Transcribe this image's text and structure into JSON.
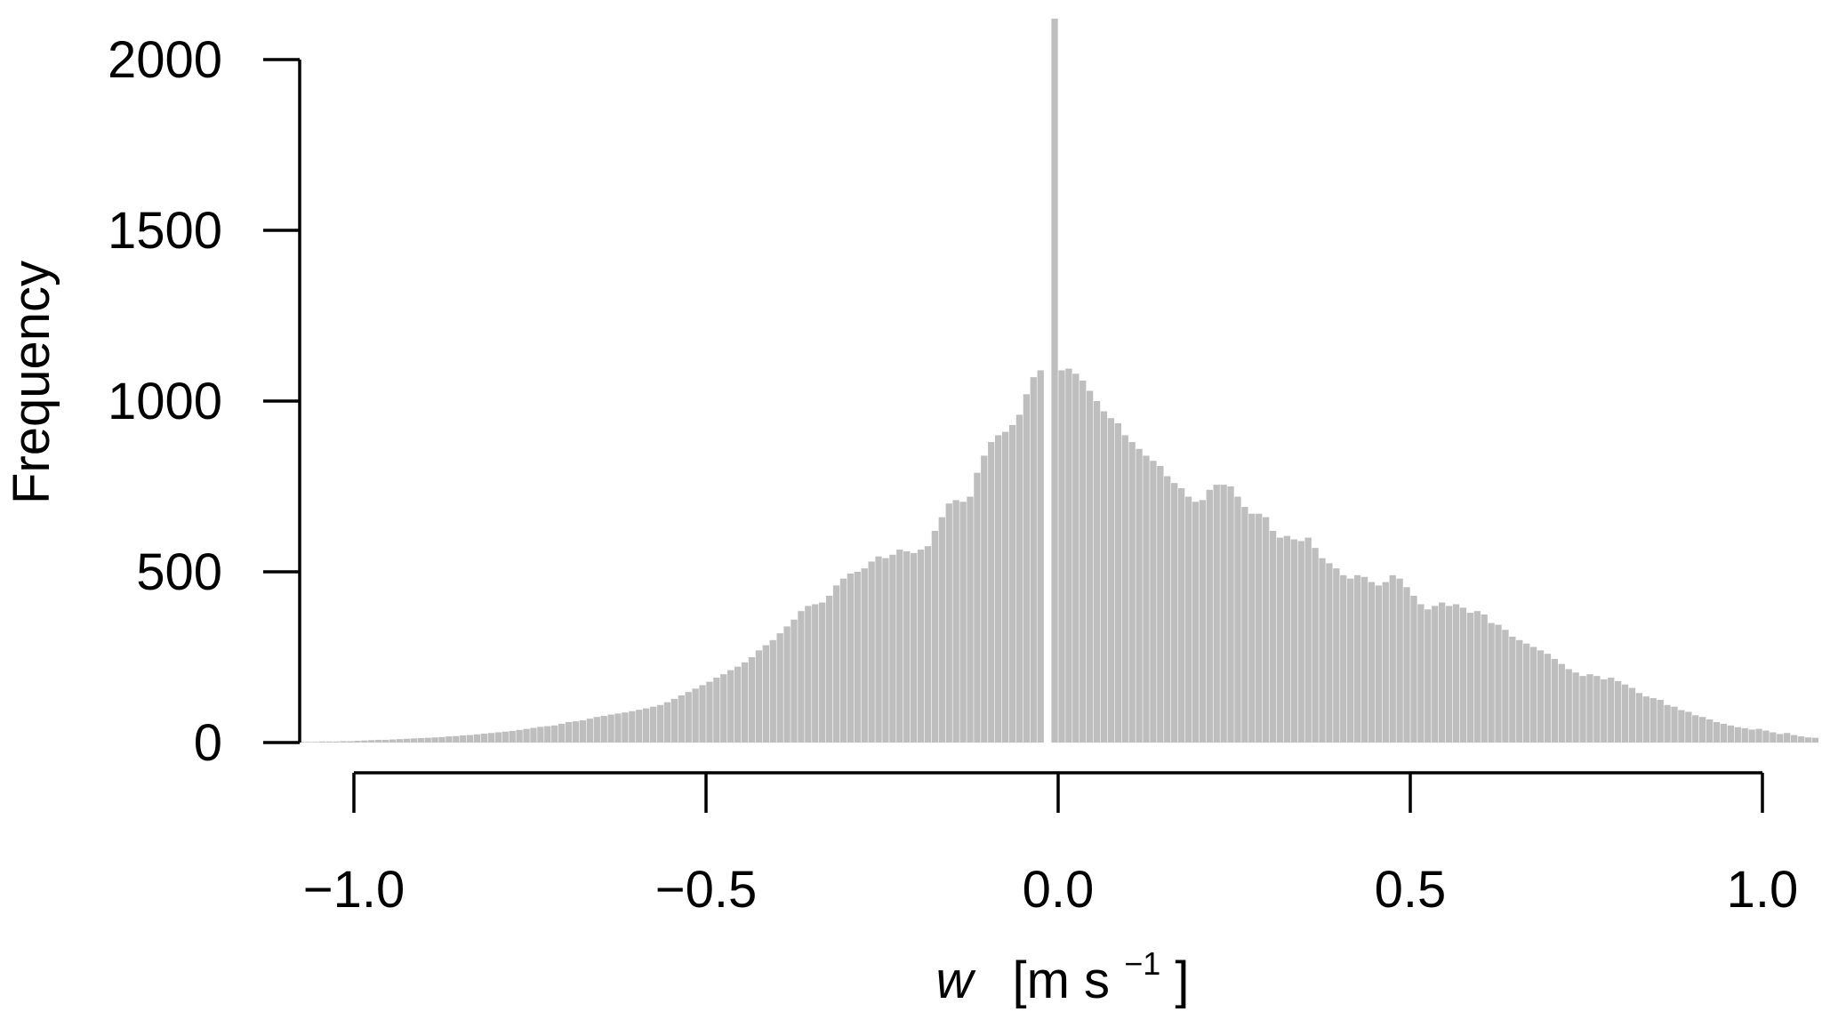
{
  "chart_data": {
    "type": "bar",
    "title": "",
    "xlabel": {
      "symbol": "w",
      "unit_open": "[m s",
      "unit_exp": "−1",
      "unit_close": "]"
    },
    "ylabel": "Frequency",
    "xlim": [
      -1.09,
      1.08
    ],
    "ylim": [
      0,
      2000
    ],
    "x_ticks": [
      -1.0,
      -0.5,
      0.0,
      0.5,
      1.0
    ],
    "x_tick_labels": [
      "−1.0",
      "−0.5",
      "0.0",
      "0.5",
      "1.0"
    ],
    "y_ticks": [
      0,
      500,
      1000,
      1500,
      2000
    ],
    "y_tick_labels": [
      "0",
      "500",
      "1000",
      "1500",
      "2000"
    ],
    "bar_color": "#bebebe",
    "bin_width": 0.01,
    "bins_left": [
      {
        "x": -1.08,
        "y": 2
      },
      {
        "x": -1.07,
        "y": 2
      },
      {
        "x": -1.06,
        "y": 2
      },
      {
        "x": -1.05,
        "y": 3
      },
      {
        "x": -1.04,
        "y": 3
      },
      {
        "x": -1.03,
        "y": 3
      },
      {
        "x": -1.02,
        "y": 4
      },
      {
        "x": -1.01,
        "y": 4
      },
      {
        "x": -1.0,
        "y": 5
      },
      {
        "x": -0.99,
        "y": 6
      },
      {
        "x": -0.98,
        "y": 7
      },
      {
        "x": -0.97,
        "y": 8
      },
      {
        "x": -0.96,
        "y": 8
      },
      {
        "x": -0.95,
        "y": 9
      },
      {
        "x": -0.94,
        "y": 10
      },
      {
        "x": -0.93,
        "y": 11
      },
      {
        "x": -0.92,
        "y": 12
      },
      {
        "x": -0.91,
        "y": 13
      },
      {
        "x": -0.9,
        "y": 14
      },
      {
        "x": -0.89,
        "y": 15
      },
      {
        "x": -0.88,
        "y": 16
      },
      {
        "x": -0.87,
        "y": 18
      },
      {
        "x": -0.86,
        "y": 19
      },
      {
        "x": -0.85,
        "y": 21
      },
      {
        "x": -0.84,
        "y": 22
      },
      {
        "x": -0.83,
        "y": 24
      },
      {
        "x": -0.82,
        "y": 26
      },
      {
        "x": -0.81,
        "y": 28
      },
      {
        "x": -0.8,
        "y": 30
      },
      {
        "x": -0.79,
        "y": 32
      },
      {
        "x": -0.78,
        "y": 34
      },
      {
        "x": -0.77,
        "y": 37
      },
      {
        "x": -0.76,
        "y": 40
      },
      {
        "x": -0.75,
        "y": 43
      },
      {
        "x": -0.74,
        "y": 46
      },
      {
        "x": -0.73,
        "y": 48
      },
      {
        "x": -0.72,
        "y": 50
      },
      {
        "x": -0.71,
        "y": 55
      },
      {
        "x": -0.7,
        "y": 60
      },
      {
        "x": -0.69,
        "y": 62
      },
      {
        "x": -0.68,
        "y": 65
      },
      {
        "x": -0.67,
        "y": 70
      },
      {
        "x": -0.66,
        "y": 75
      },
      {
        "x": -0.65,
        "y": 78
      },
      {
        "x": -0.64,
        "y": 82
      },
      {
        "x": -0.63,
        "y": 85
      },
      {
        "x": -0.62,
        "y": 88
      },
      {
        "x": -0.61,
        "y": 92
      },
      {
        "x": -0.6,
        "y": 96
      },
      {
        "x": -0.59,
        "y": 100
      },
      {
        "x": -0.58,
        "y": 105
      },
      {
        "x": -0.57,
        "y": 110
      },
      {
        "x": -0.56,
        "y": 118
      },
      {
        "x": -0.55,
        "y": 128
      },
      {
        "x": -0.54,
        "y": 138
      },
      {
        "x": -0.53,
        "y": 148
      },
      {
        "x": -0.52,
        "y": 158
      },
      {
        "x": -0.51,
        "y": 168
      },
      {
        "x": -0.5,
        "y": 178
      },
      {
        "x": -0.49,
        "y": 190
      },
      {
        "x": -0.48,
        "y": 200
      },
      {
        "x": -0.47,
        "y": 212
      },
      {
        "x": -0.46,
        "y": 222
      },
      {
        "x": -0.45,
        "y": 235
      },
      {
        "x": -0.44,
        "y": 250
      },
      {
        "x": -0.43,
        "y": 270
      },
      {
        "x": -0.42,
        "y": 285
      },
      {
        "x": -0.41,
        "y": 300
      },
      {
        "x": -0.4,
        "y": 320
      },
      {
        "x": -0.39,
        "y": 340
      },
      {
        "x": -0.38,
        "y": 360
      },
      {
        "x": -0.37,
        "y": 385
      },
      {
        "x": -0.36,
        "y": 400
      },
      {
        "x": -0.35,
        "y": 405
      },
      {
        "x": -0.34,
        "y": 410
      },
      {
        "x": -0.33,
        "y": 430
      },
      {
        "x": -0.32,
        "y": 460
      },
      {
        "x": -0.31,
        "y": 480
      },
      {
        "x": -0.3,
        "y": 495
      },
      {
        "x": -0.29,
        "y": 500
      },
      {
        "x": -0.28,
        "y": 510
      },
      {
        "x": -0.27,
        "y": 530
      },
      {
        "x": -0.26,
        "y": 545
      },
      {
        "x": -0.25,
        "y": 540
      },
      {
        "x": -0.24,
        "y": 550
      },
      {
        "x": -0.23,
        "y": 565
      },
      {
        "x": -0.22,
        "y": 560
      },
      {
        "x": -0.21,
        "y": 555
      },
      {
        "x": -0.2,
        "y": 565
      },
      {
        "x": -0.19,
        "y": 575
      },
      {
        "x": -0.18,
        "y": 620
      },
      {
        "x": -0.17,
        "y": 660
      },
      {
        "x": -0.16,
        "y": 700
      },
      {
        "x": -0.15,
        "y": 710
      },
      {
        "x": -0.14,
        "y": 705
      },
      {
        "x": -0.13,
        "y": 720
      },
      {
        "x": -0.12,
        "y": 790
      },
      {
        "x": -0.11,
        "y": 840
      },
      {
        "x": -0.1,
        "y": 880
      },
      {
        "x": -0.09,
        "y": 900
      },
      {
        "x": -0.08,
        "y": 910
      },
      {
        "x": -0.07,
        "y": 930
      },
      {
        "x": -0.06,
        "y": 960
      },
      {
        "x": -0.05,
        "y": 1020
      },
      {
        "x": -0.04,
        "y": 1070
      },
      {
        "x": -0.03,
        "y": 1090
      }
    ],
    "bins_right": [
      {
        "x": -0.01,
        "y": 2120
      },
      {
        "x": 0.0,
        "y": 1090
      },
      {
        "x": 0.01,
        "y": 1095
      },
      {
        "x": 0.02,
        "y": 1080
      },
      {
        "x": 0.03,
        "y": 1060
      },
      {
        "x": 0.04,
        "y": 1030
      },
      {
        "x": 0.05,
        "y": 1000
      },
      {
        "x": 0.06,
        "y": 970
      },
      {
        "x": 0.07,
        "y": 950
      },
      {
        "x": 0.08,
        "y": 935
      },
      {
        "x": 0.09,
        "y": 900
      },
      {
        "x": 0.1,
        "y": 880
      },
      {
        "x": 0.11,
        "y": 860
      },
      {
        "x": 0.12,
        "y": 840
      },
      {
        "x": 0.13,
        "y": 825
      },
      {
        "x": 0.14,
        "y": 810
      },
      {
        "x": 0.15,
        "y": 780
      },
      {
        "x": 0.16,
        "y": 760
      },
      {
        "x": 0.17,
        "y": 745
      },
      {
        "x": 0.18,
        "y": 720
      },
      {
        "x": 0.19,
        "y": 705
      },
      {
        "x": 0.2,
        "y": 710
      },
      {
        "x": 0.21,
        "y": 740
      },
      {
        "x": 0.22,
        "y": 755
      },
      {
        "x": 0.23,
        "y": 755
      },
      {
        "x": 0.24,
        "y": 750
      },
      {
        "x": 0.25,
        "y": 720
      },
      {
        "x": 0.26,
        "y": 690
      },
      {
        "x": 0.27,
        "y": 670
      },
      {
        "x": 0.28,
        "y": 670
      },
      {
        "x": 0.29,
        "y": 660
      },
      {
        "x": 0.3,
        "y": 620
      },
      {
        "x": 0.31,
        "y": 600
      },
      {
        "x": 0.32,
        "y": 605
      },
      {
        "x": 0.33,
        "y": 595
      },
      {
        "x": 0.34,
        "y": 590
      },
      {
        "x": 0.35,
        "y": 600
      },
      {
        "x": 0.36,
        "y": 570
      },
      {
        "x": 0.37,
        "y": 540
      },
      {
        "x": 0.38,
        "y": 525
      },
      {
        "x": 0.39,
        "y": 510
      },
      {
        "x": 0.4,
        "y": 490
      },
      {
        "x": 0.41,
        "y": 480
      },
      {
        "x": 0.42,
        "y": 490
      },
      {
        "x": 0.43,
        "y": 485
      },
      {
        "x": 0.44,
        "y": 470
      },
      {
        "x": 0.45,
        "y": 460
      },
      {
        "x": 0.46,
        "y": 470
      },
      {
        "x": 0.47,
        "y": 490
      },
      {
        "x": 0.48,
        "y": 480
      },
      {
        "x": 0.49,
        "y": 455
      },
      {
        "x": 0.5,
        "y": 430
      },
      {
        "x": 0.51,
        "y": 405
      },
      {
        "x": 0.52,
        "y": 390
      },
      {
        "x": 0.53,
        "y": 400
      },
      {
        "x": 0.54,
        "y": 410
      },
      {
        "x": 0.55,
        "y": 400
      },
      {
        "x": 0.56,
        "y": 405
      },
      {
        "x": 0.57,
        "y": 395
      },
      {
        "x": 0.58,
        "y": 380
      },
      {
        "x": 0.59,
        "y": 385
      },
      {
        "x": 0.6,
        "y": 375
      },
      {
        "x": 0.61,
        "y": 350
      },
      {
        "x": 0.62,
        "y": 345
      },
      {
        "x": 0.63,
        "y": 330
      },
      {
        "x": 0.64,
        "y": 310
      },
      {
        "x": 0.65,
        "y": 300
      },
      {
        "x": 0.66,
        "y": 290
      },
      {
        "x": 0.67,
        "y": 280
      },
      {
        "x": 0.68,
        "y": 270
      },
      {
        "x": 0.69,
        "y": 260
      },
      {
        "x": 0.7,
        "y": 245
      },
      {
        "x": 0.71,
        "y": 230
      },
      {
        "x": 0.72,
        "y": 215
      },
      {
        "x": 0.73,
        "y": 205
      },
      {
        "x": 0.74,
        "y": 195
      },
      {
        "x": 0.75,
        "y": 200
      },
      {
        "x": 0.76,
        "y": 195
      },
      {
        "x": 0.77,
        "y": 185
      },
      {
        "x": 0.78,
        "y": 190
      },
      {
        "x": 0.79,
        "y": 180
      },
      {
        "x": 0.8,
        "y": 170
      },
      {
        "x": 0.81,
        "y": 160
      },
      {
        "x": 0.82,
        "y": 145
      },
      {
        "x": 0.83,
        "y": 135
      },
      {
        "x": 0.84,
        "y": 130
      },
      {
        "x": 0.85,
        "y": 125
      },
      {
        "x": 0.86,
        "y": 110
      },
      {
        "x": 0.87,
        "y": 105
      },
      {
        "x": 0.88,
        "y": 95
      },
      {
        "x": 0.89,
        "y": 90
      },
      {
        "x": 0.9,
        "y": 80
      },
      {
        "x": 0.91,
        "y": 75
      },
      {
        "x": 0.92,
        "y": 68
      },
      {
        "x": 0.93,
        "y": 60
      },
      {
        "x": 0.94,
        "y": 55
      },
      {
        "x": 0.95,
        "y": 50
      },
      {
        "x": 0.96,
        "y": 45
      },
      {
        "x": 0.97,
        "y": 42
      },
      {
        "x": 0.98,
        "y": 38
      },
      {
        "x": 0.99,
        "y": 40
      },
      {
        "x": 1.0,
        "y": 35
      },
      {
        "x": 1.01,
        "y": 30
      },
      {
        "x": 1.02,
        "y": 25
      },
      {
        "x": 1.03,
        "y": 28
      },
      {
        "x": 1.04,
        "y": 22
      },
      {
        "x": 1.05,
        "y": 18
      },
      {
        "x": 1.06,
        "y": 15
      },
      {
        "x": 1.07,
        "y": 14
      }
    ]
  }
}
